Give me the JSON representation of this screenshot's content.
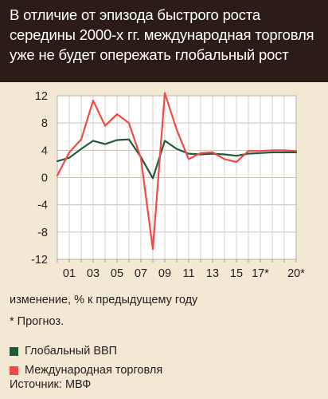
{
  "header": {
    "title": "В отличие от эпизода быстрого роста середины 2000-х гг. международная торговля уже не будет опережать глобальный рост"
  },
  "chart_data": {
    "type": "line",
    "title": "В отличие от эпизода быстрого роста середины 2000-х гг. международная торговля уже не будет опережать глобальный рост",
    "xlabel": "",
    "ylabel": "изменение, % к предыдущему году",
    "x": [
      2000,
      2001,
      2002,
      2003,
      2004,
      2005,
      2006,
      2007,
      2008,
      2009,
      2010,
      2011,
      2012,
      2013,
      2014,
      2015,
      2016,
      2017,
      2018,
      2019,
      2020
    ],
    "x_tick_labels": [
      "01",
      "03",
      "05",
      "07",
      "09",
      "11",
      "13",
      "15",
      "17*",
      "20*"
    ],
    "ylim": [
      -12,
      12
    ],
    "y_ticks": [
      12,
      8,
      4,
      0,
      -4,
      -8,
      -12
    ],
    "grid": true,
    "series": [
      {
        "name": "Глобальный ВВП",
        "color": "#1f5b3a",
        "values": [
          2.4,
          2.9,
          4.2,
          5.4,
          4.9,
          5.5,
          5.6,
          3.0,
          -0.1,
          5.4,
          4.2,
          3.5,
          3.4,
          3.5,
          3.4,
          3.2,
          3.5,
          3.6,
          3.7,
          3.7,
          3.7
        ]
      },
      {
        "name": "Международная торговля",
        "color": "#f04a45",
        "values": [
          0.3,
          3.7,
          5.6,
          11.3,
          7.6,
          9.3,
          8.0,
          2.8,
          -10.5,
          12.4,
          7.0,
          2.7,
          3.6,
          3.7,
          2.7,
          2.3,
          3.9,
          3.9,
          4.0,
          4.0,
          3.9
        ]
      }
    ]
  },
  "axis": {
    "ylabel": "изменение, % к предыдущему году"
  },
  "footnote": "* Прогноз.",
  "legend": [
    {
      "label": "Глобальный ВВП",
      "color": "#1f5b3a"
    },
    {
      "label": "Международная торговля",
      "color": "#f04a45"
    }
  ],
  "source": "Источник: МВФ"
}
